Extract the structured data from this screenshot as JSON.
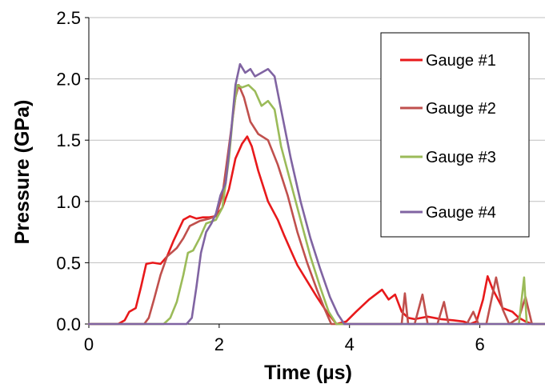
{
  "chart_data": {
    "type": "line",
    "title": "",
    "xlabel": "Time (µs)",
    "ylabel": "Pressure (GPa)",
    "xlim": [
      0,
      7
    ],
    "ylim": [
      0,
      2.5
    ],
    "x_ticks": [
      "0",
      "2",
      "4",
      "6"
    ],
    "x_tick_values": [
      0,
      2,
      4,
      6
    ],
    "y_ticks": [
      "0.0",
      "0.5",
      "1.0",
      "1.5",
      "2.0",
      "2.5"
    ],
    "y_tick_values": [
      0,
      0.5,
      1.0,
      1.5,
      2.0,
      2.5
    ],
    "grid": "horizontal",
    "legend_position": "top-right",
    "series": [
      {
        "name": "Gauge #1",
        "color": "#e8191b",
        "points": [
          [
            0,
            0
          ],
          [
            0.45,
            0
          ],
          [
            0.55,
            0.03
          ],
          [
            0.62,
            0.1
          ],
          [
            0.72,
            0.13
          ],
          [
            0.8,
            0.3
          ],
          [
            0.88,
            0.49
          ],
          [
            0.98,
            0.5
          ],
          [
            1.1,
            0.49
          ],
          [
            1.2,
            0.55
          ],
          [
            1.3,
            0.68
          ],
          [
            1.45,
            0.85
          ],
          [
            1.55,
            0.88
          ],
          [
            1.65,
            0.86
          ],
          [
            1.75,
            0.87
          ],
          [
            1.85,
            0.87
          ],
          [
            1.95,
            0.88
          ],
          [
            2.05,
            0.95
          ],
          [
            2.15,
            1.1
          ],
          [
            2.25,
            1.35
          ],
          [
            2.35,
            1.47
          ],
          [
            2.43,
            1.53
          ],
          [
            2.5,
            1.45
          ],
          [
            2.6,
            1.25
          ],
          [
            2.75,
            1.0
          ],
          [
            2.9,
            0.85
          ],
          [
            3.0,
            0.72
          ],
          [
            3.1,
            0.6
          ],
          [
            3.2,
            0.48
          ],
          [
            3.35,
            0.35
          ],
          [
            3.5,
            0.22
          ],
          [
            3.65,
            0.1
          ],
          [
            3.8,
            0.0
          ],
          [
            3.95,
            0.02
          ],
          [
            4.1,
            0.1
          ],
          [
            4.3,
            0.2
          ],
          [
            4.5,
            0.28
          ],
          [
            4.6,
            0.2
          ],
          [
            4.7,
            0.24
          ],
          [
            4.8,
            0.1
          ],
          [
            4.9,
            0.05
          ],
          [
            5.0,
            0.04
          ],
          [
            5.2,
            0.06
          ],
          [
            5.4,
            0.04
          ],
          [
            5.6,
            0.03
          ],
          [
            5.75,
            0.02
          ],
          [
            5.85,
            0.0
          ],
          [
            5.95,
            0.02
          ],
          [
            6.05,
            0.2
          ],
          [
            6.12,
            0.39
          ],
          [
            6.2,
            0.28
          ],
          [
            6.35,
            0.13
          ],
          [
            6.5,
            0.1
          ],
          [
            6.6,
            0.05
          ],
          [
            6.7,
            0.02
          ],
          [
            6.8,
            0.0
          ],
          [
            7.0,
            0.0
          ]
        ]
      },
      {
        "name": "Gauge #2",
        "color": "#c0504d",
        "points": [
          [
            0,
            0
          ],
          [
            0.85,
            0
          ],
          [
            0.92,
            0.05
          ],
          [
            1.0,
            0.2
          ],
          [
            1.1,
            0.4
          ],
          [
            1.2,
            0.55
          ],
          [
            1.35,
            0.62
          ],
          [
            1.45,
            0.7
          ],
          [
            1.55,
            0.8
          ],
          [
            1.7,
            0.84
          ],
          [
            1.85,
            0.86
          ],
          [
            1.95,
            0.88
          ],
          [
            2.05,
            1.05
          ],
          [
            2.15,
            1.45
          ],
          [
            2.25,
            1.85
          ],
          [
            2.3,
            1.95
          ],
          [
            2.38,
            1.85
          ],
          [
            2.48,
            1.65
          ],
          [
            2.6,
            1.55
          ],
          [
            2.75,
            1.5
          ],
          [
            2.9,
            1.3
          ],
          [
            3.05,
            1.05
          ],
          [
            3.2,
            0.75
          ],
          [
            3.35,
            0.5
          ],
          [
            3.5,
            0.28
          ],
          [
            3.62,
            0.12
          ],
          [
            3.72,
            0.0
          ],
          [
            3.9,
            0.0
          ],
          [
            4.8,
            0.0
          ],
          [
            4.85,
            0.25
          ],
          [
            4.9,
            0.0
          ],
          [
            5.0,
            0.0
          ],
          [
            5.12,
            0.24
          ],
          [
            5.2,
            0.0
          ],
          [
            5.35,
            0.0
          ],
          [
            5.45,
            0.18
          ],
          [
            5.52,
            0.0
          ],
          [
            5.7,
            0.0
          ],
          [
            5.8,
            0.0
          ],
          [
            5.9,
            0.1
          ],
          [
            5.98,
            0.0
          ],
          [
            6.1,
            0.0
          ],
          [
            6.25,
            0.38
          ],
          [
            6.35,
            0.12
          ],
          [
            6.45,
            0.0
          ],
          [
            6.6,
            0.05
          ],
          [
            6.7,
            0.22
          ],
          [
            6.8,
            0.0
          ],
          [
            7.0,
            0.0
          ]
        ]
      },
      {
        "name": "Gauge #3",
        "color": "#9bbb59",
        "points": [
          [
            0,
            0
          ],
          [
            1.15,
            0
          ],
          [
            1.25,
            0.05
          ],
          [
            1.35,
            0.18
          ],
          [
            1.45,
            0.4
          ],
          [
            1.52,
            0.58
          ],
          [
            1.6,
            0.6
          ],
          [
            1.7,
            0.7
          ],
          [
            1.8,
            0.82
          ],
          [
            1.95,
            0.85
          ],
          [
            2.05,
            0.95
          ],
          [
            2.15,
            1.35
          ],
          [
            2.22,
            1.75
          ],
          [
            2.28,
            1.95
          ],
          [
            2.35,
            1.93
          ],
          [
            2.45,
            1.95
          ],
          [
            2.55,
            1.9
          ],
          [
            2.65,
            1.78
          ],
          [
            2.75,
            1.82
          ],
          [
            2.85,
            1.75
          ],
          [
            2.95,
            1.45
          ],
          [
            3.1,
            1.15
          ],
          [
            3.25,
            0.85
          ],
          [
            3.4,
            0.55
          ],
          [
            3.55,
            0.3
          ],
          [
            3.68,
            0.1
          ],
          [
            3.8,
            0.0
          ],
          [
            4.0,
            0.0
          ],
          [
            6.6,
            0.0
          ],
          [
            6.68,
            0.38
          ],
          [
            6.72,
            0.0
          ],
          [
            7.0,
            0.0
          ]
        ]
      },
      {
        "name": "Gauge #4",
        "color": "#8064a2",
        "points": [
          [
            0,
            0
          ],
          [
            1.5,
            0
          ],
          [
            1.58,
            0.05
          ],
          [
            1.65,
            0.3
          ],
          [
            1.72,
            0.58
          ],
          [
            1.8,
            0.75
          ],
          [
            1.88,
            0.82
          ],
          [
            1.95,
            0.9
          ],
          [
            2.02,
            1.05
          ],
          [
            2.1,
            1.15
          ],
          [
            2.18,
            1.55
          ],
          [
            2.25,
            1.95
          ],
          [
            2.32,
            2.12
          ],
          [
            2.4,
            2.05
          ],
          [
            2.48,
            2.08
          ],
          [
            2.55,
            2.02
          ],
          [
            2.65,
            2.05
          ],
          [
            2.75,
            2.08
          ],
          [
            2.85,
            2.02
          ],
          [
            2.95,
            1.75
          ],
          [
            3.1,
            1.35
          ],
          [
            3.25,
            1.0
          ],
          [
            3.4,
            0.7
          ],
          [
            3.55,
            0.45
          ],
          [
            3.7,
            0.22
          ],
          [
            3.82,
            0.08
          ],
          [
            3.92,
            0.0
          ],
          [
            4.1,
            0.0
          ],
          [
            7.0,
            0.0
          ]
        ]
      }
    ]
  }
}
